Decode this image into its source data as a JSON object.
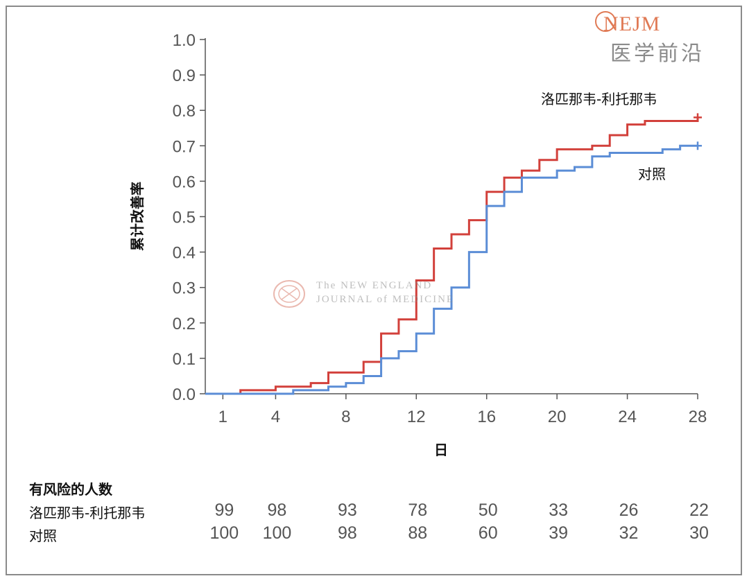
{
  "logo": {
    "brand": "NEJM",
    "brand_cn": "医学前沿"
  },
  "watermark": {
    "line1": "The NEW ENGLAND",
    "line2": "JOURNAL of MEDICINE"
  },
  "chart_data": {
    "type": "line",
    "step": true,
    "xlabel": "日",
    "ylabel": "累计改善率",
    "xlim": [
      0,
      28
    ],
    "ylim": [
      0,
      1.0
    ],
    "x_ticks": [
      1,
      4,
      8,
      12,
      16,
      20,
      24,
      28
    ],
    "y_ticks": [
      0.0,
      0.1,
      0.2,
      0.3,
      0.4,
      0.5,
      0.6,
      0.7,
      0.8,
      0.9,
      1.0
    ],
    "y_tick_labels": [
      "0.0",
      "0.1",
      "0.2",
      "0.3",
      "0.4",
      "0.5",
      "0.6",
      "0.7",
      "0.8",
      "0.9",
      "1.0"
    ],
    "series": [
      {
        "name": "洛匹那韦-利托那韦",
        "color": "#d2403b",
        "x": [
          0,
          2,
          4,
          6,
          7,
          9,
          10,
          11,
          12,
          13,
          14,
          15,
          16,
          17,
          18,
          19,
          20,
          22,
          23,
          24,
          25,
          28
        ],
        "y": [
          0.0,
          0.01,
          0.02,
          0.03,
          0.06,
          0.09,
          0.17,
          0.21,
          0.32,
          0.41,
          0.45,
          0.49,
          0.57,
          0.61,
          0.63,
          0.66,
          0.69,
          0.7,
          0.73,
          0.76,
          0.77,
          0.78
        ]
      },
      {
        "name": "对照",
        "color": "#5b8dd6",
        "x": [
          0,
          2,
          5,
          7,
          8,
          9,
          10,
          11,
          12,
          13,
          14,
          15,
          16,
          17,
          18,
          20,
          21,
          22,
          23,
          26,
          27,
          28
        ],
        "y": [
          0.0,
          0.0,
          0.01,
          0.02,
          0.03,
          0.05,
          0.1,
          0.12,
          0.17,
          0.24,
          0.3,
          0.4,
          0.53,
          0.57,
          0.61,
          0.63,
          0.64,
          0.67,
          0.68,
          0.69,
          0.7,
          0.7
        ]
      }
    ]
  },
  "risk_table": {
    "title": "有风险的人数",
    "days": [
      1,
      4,
      8,
      12,
      16,
      20,
      24,
      28
    ],
    "rows": [
      {
        "label": "洛匹那韦-利托那韦",
        "values": [
          "99",
          "98",
          "93",
          "78",
          "50",
          "33",
          "26",
          "22"
        ]
      },
      {
        "label": "对照",
        "values": [
          "100",
          "100",
          "98",
          "88",
          "60",
          "39",
          "32",
          "30"
        ]
      }
    ]
  }
}
